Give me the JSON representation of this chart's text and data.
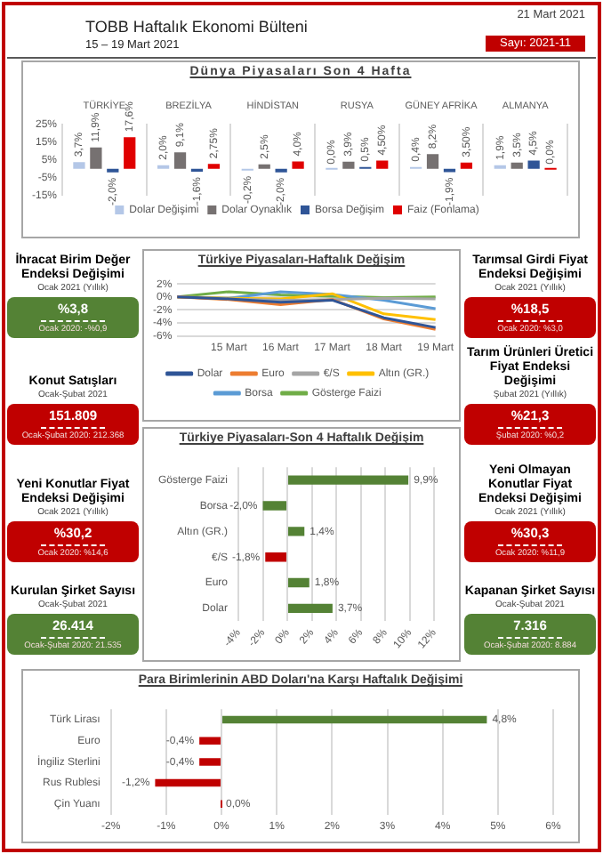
{
  "chart_data": [
    {
      "type": "other",
      "title": "TOBB Haftalık Ekonomi Bülteni",
      "subtitle": "15 – 19 Mart 2021",
      "annotations": [
        "21 Mart 2021",
        "Sayı: 2021-11"
      ]
    },
    {
      "type": "bar",
      "title": "Dünya Piyasaları Son 4 Hafta",
      "categories": [
        "TÜRKİYE",
        "BREZİLYA",
        "HİNDİSTAN",
        "RUSYA",
        "GÜNEY AFRİKA",
        "ALMANYA"
      ],
      "series": [
        {
          "name": "Dolar Değişimi",
          "color": "#b4c7e7",
          "values": [
            3.7,
            2.0,
            -0.2,
            0.0,
            0.4,
            1.9
          ],
          "value_labels": [
            "3,7%",
            "2,0%",
            "-0,2%",
            "0,0%",
            "0,4%",
            "1,9%"
          ]
        },
        {
          "name": "Dolar Oynaklık",
          "color": "#767171",
          "values": [
            11.9,
            9.1,
            2.5,
            3.9,
            8.2,
            3.5
          ],
          "value_labels": [
            "11,9%",
            "9,1%",
            "2,5%",
            "3,9%",
            "8,2%",
            "3,5%"
          ]
        },
        {
          "name": "Borsa Değişim",
          "color": "#2f5597",
          "values": [
            -2.0,
            -1.6,
            -2.0,
            0.5,
            -1.9,
            4.5
          ],
          "value_labels": [
            "-2,0%",
            "-1,6%",
            "-2,0%",
            "0,5%",
            "-1,9%",
            "4,5%"
          ]
        },
        {
          "name": "Faiz (Fonlama)",
          "color": "#e00000",
          "values": [
            17.6,
            2.75,
            4.0,
            4.5,
            3.5,
            0.0
          ],
          "value_labels": [
            "17,6%",
            "2,75%",
            "4,0%",
            "4,50%",
            "3,50%",
            "0,0%"
          ]
        }
      ],
      "ylim": [
        -15,
        25
      ],
      "yticks": [
        {
          "value": 25,
          "label": "25%"
        },
        {
          "value": 15,
          "label": "15%"
        },
        {
          "value": 5,
          "label": "5%"
        },
        {
          "value": -5,
          "label": "-5%"
        },
        {
          "value": -15,
          "label": "-15%"
        }
      ],
      "grid": "x",
      "legend": "bottom"
    },
    {
      "type": "other",
      "title": "İhracat Birim Değer Endeksi Değişimi",
      "subtitle": "Ocak 2021 (Yıllık)",
      "color": "#548235",
      "annotations": [
        "%3,8",
        "Ocak 2020: -%0,9"
      ]
    },
    {
      "type": "other",
      "title": "Konut Satışları",
      "subtitle": "Ocak-Şubat 2021",
      "color": "#c00000",
      "annotations": [
        "151.809",
        "Ocak-Şubat 2020: 212.368"
      ]
    },
    {
      "type": "other",
      "title": "Yeni Konutlar Fiyat Endeksi Değişimi",
      "subtitle": "Ocak 2021 (Yıllık)",
      "color": "#c00000",
      "annotations": [
        "%30,2",
        "Ocak 2020: %14,6"
      ]
    },
    {
      "type": "other",
      "title": "Kurulan Şirket Sayısı",
      "subtitle": "Ocak-Şubat 2021",
      "color": "#548235",
      "annotations": [
        "26.414",
        "Ocak-Şubat 2020: 21.535"
      ]
    },
    {
      "type": "other",
      "title": "Tarımsal Girdi Fiyat Endeksi Değişimi",
      "subtitle": "Ocak 2021 (Yıllık)",
      "color": "#c00000",
      "annotations": [
        "%18,5",
        "Ocak 2020: %3,0"
      ]
    },
    {
      "type": "other",
      "title": "Tarım Ürünleri Üretici Fiyat Endeksi Değişimi",
      "subtitle": "Şubat 2021 (Yıllık)",
      "color": "#c00000",
      "annotations": [
        "%21,3",
        "Şubat 2020: %0,2"
      ]
    },
    {
      "type": "other",
      "title": "Yeni Olmayan Konutlar Fiyat Endeksi Değişimi",
      "subtitle": "Ocak 2021 (Yıllık)",
      "color": "#c00000",
      "annotations": [
        "%30,3",
        "Ocak 2020: %11,9"
      ]
    },
    {
      "type": "other",
      "title": "Kapanan Şirket Sayısı",
      "subtitle": "Ocak-Şubat 2021",
      "color": "#548235",
      "annotations": [
        "7.316",
        "Ocak-Şubat 2020: 8.884"
      ]
    },
    {
      "type": "line",
      "title": "Türkiye Piyasaları-Haftalık Değişim",
      "categories": [
        null,
        "15 Mart",
        "16 Mart",
        "17 Mart",
        "18 Mart",
        "19 Mart"
      ],
      "series": [
        {
          "name": "Dolar",
          "color": "#2f5597",
          "values": [
            0,
            -0.3,
            -0.8,
            -0.5,
            -3.2,
            -4.7
          ]
        },
        {
          "name": "Euro",
          "color": "#ed7d31",
          "values": [
            0,
            -0.4,
            -1.2,
            -0.4,
            -3.4,
            -5.0
          ]
        },
        {
          "name": "€/S",
          "color": "#a5a5a5",
          "values": [
            0,
            -0.3,
            -0.5,
            -0.4,
            -0.2,
            -0.3
          ]
        },
        {
          "name": "Altın (GR.)",
          "color": "#ffc000",
          "values": [
            0,
            -0.2,
            -0.3,
            0.5,
            -2.6,
            -3.5
          ]
        },
        {
          "name": "Borsa",
          "color": "#5b9bd5",
          "values": [
            0,
            -0.2,
            0.8,
            0.4,
            -0.5,
            -1.8
          ]
        },
        {
          "name": "Gösterge Faizi",
          "color": "#70ad47",
          "values": [
            0,
            0.8,
            0.3,
            0.1,
            -0.1,
            0.0
          ]
        }
      ],
      "ylim": [
        -6,
        2
      ],
      "yticks": [
        {
          "value": 2,
          "label": "2%"
        },
        {
          "value": 0,
          "label": "0%"
        },
        {
          "value": -2,
          "label": "-2%"
        },
        {
          "value": -4,
          "label": "-4%"
        },
        {
          "value": -6,
          "label": "-6%"
        }
      ],
      "grid": "y",
      "legend": "bottom",
      "marker": "none"
    },
    {
      "type": "bar",
      "orientation": "horizontal",
      "title": "Türkiye Piyasaları-Son 4 Haftalık Değişim",
      "categories": [
        "Gösterge Faizi",
        "Borsa",
        "Altın (GR.)",
        "€/S",
        "Euro",
        "Dolar"
      ],
      "values": [
        9.9,
        -2.0,
        1.4,
        -1.8,
        1.8,
        3.7
      ],
      "colors": [
        "#548235",
        "#548235",
        "#548235",
        "#c00000",
        "#548235",
        "#548235"
      ],
      "value_labels": [
        "9,9%",
        "-2,0%",
        "1,4%",
        "-1,8%",
        "1,8%",
        "3,7%"
      ],
      "xlim": [
        -4,
        12
      ],
      "xticks": [
        {
          "value": -4,
          "label": "-4%"
        },
        {
          "value": -2,
          "label": "-2%"
        },
        {
          "value": 0,
          "label": "0%"
        },
        {
          "value": 2,
          "label": "2%"
        },
        {
          "value": 4,
          "label": "4%"
        },
        {
          "value": 6,
          "label": "6%"
        },
        {
          "value": 8,
          "label": "8%"
        },
        {
          "value": 10,
          "label": "10%"
        },
        {
          "value": 12,
          "label": "12%"
        }
      ],
      "grid": "x"
    },
    {
      "type": "bar",
      "orientation": "horizontal",
      "title": "Para Birimlerinin ABD Doları'na Karşı Haftalık Değişimi",
      "categories": [
        "Türk Lirası",
        "Euro",
        "İngiliz Sterlini",
        "Rus Rublesi",
        "Çin Yuanı"
      ],
      "values": [
        4.8,
        -0.4,
        -0.4,
        -1.2,
        0.0
      ],
      "colors": [
        "#548235",
        "#c00000",
        "#c00000",
        "#c00000",
        "#c00000"
      ],
      "value_labels": [
        "4,8%",
        "-0,4%",
        "-0,4%",
        "-1,2%",
        "0,0%"
      ],
      "xlim": [
        -2,
        6
      ],
      "xticks": [
        {
          "value": -2,
          "label": "-2%"
        },
        {
          "value": -1,
          "label": "-1%"
        },
        {
          "value": 0,
          "label": "0%"
        },
        {
          "value": 1,
          "label": "1%"
        },
        {
          "value": 2,
          "label": "2%"
        },
        {
          "value": 3,
          "label": "3%"
        },
        {
          "value": 4,
          "label": "4%"
        },
        {
          "value": 5,
          "label": "5%"
        },
        {
          "value": 6,
          "label": "6%"
        }
      ],
      "grid": "x"
    }
  ]
}
